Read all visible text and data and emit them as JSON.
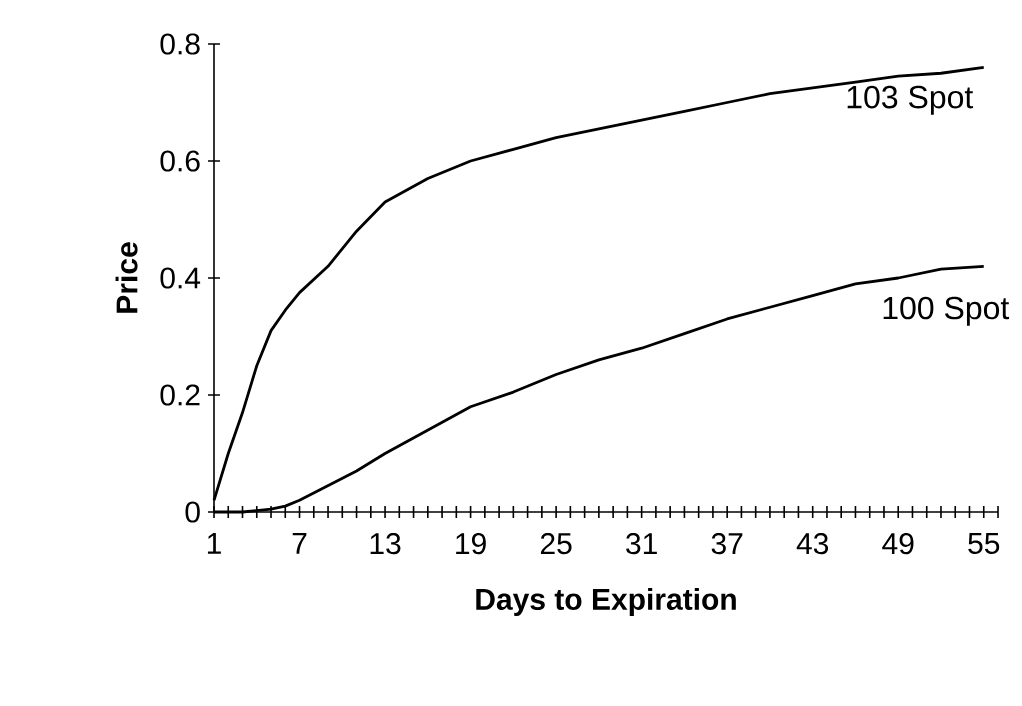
{
  "chart_data": {
    "type": "line",
    "xlabel": "Days to Expiration",
    "ylabel": "Price",
    "xlim": [
      1,
      56
    ],
    "ylim": [
      0,
      0.8
    ],
    "xticks": [
      1,
      {
        "value": 2,
        "label": null
      },
      {
        "value": 3,
        "label": null
      },
      {
        "value": 4,
        "label": null
      },
      {
        "value": 5,
        "label": null
      },
      {
        "value": 6,
        "label": null
      },
      7,
      {
        "value": 8,
        "label": null
      },
      {
        "value": 9,
        "label": null
      },
      {
        "value": 10,
        "label": null
      },
      {
        "value": 11,
        "label": null
      },
      {
        "value": 12,
        "label": null
      },
      13,
      {
        "value": 14,
        "label": null
      },
      {
        "value": 15,
        "label": null
      },
      {
        "value": 16,
        "label": null
      },
      {
        "value": 17,
        "label": null
      },
      {
        "value": 18,
        "label": null
      },
      19,
      {
        "value": 20,
        "label": null
      },
      {
        "value": 21,
        "label": null
      },
      {
        "value": 22,
        "label": null
      },
      {
        "value": 23,
        "label": null
      },
      {
        "value": 24,
        "label": null
      },
      25,
      {
        "value": 26,
        "label": null
      },
      {
        "value": 27,
        "label": null
      },
      {
        "value": 28,
        "label": null
      },
      {
        "value": 29,
        "label": null
      },
      {
        "value": 30,
        "label": null
      },
      31,
      {
        "value": 32,
        "label": null
      },
      {
        "value": 33,
        "label": null
      },
      {
        "value": 34,
        "label": null
      },
      {
        "value": 35,
        "label": null
      },
      {
        "value": 36,
        "label": null
      },
      37,
      {
        "value": 38,
        "label": null
      },
      {
        "value": 39,
        "label": null
      },
      {
        "value": 40,
        "label": null
      },
      {
        "value": 41,
        "label": null
      },
      {
        "value": 42,
        "label": null
      },
      43,
      {
        "value": 44,
        "label": null
      },
      {
        "value": 45,
        "label": null
      },
      {
        "value": 46,
        "label": null
      },
      {
        "value": 47,
        "label": null
      },
      {
        "value": 48,
        "label": null
      },
      49,
      {
        "value": 50,
        "label": null
      },
      {
        "value": 51,
        "label": null
      },
      {
        "value": 52,
        "label": null
      },
      {
        "value": 53,
        "label": null
      },
      {
        "value": 54,
        "label": null
      },
      55,
      {
        "value": 56,
        "label": null
      }
    ],
    "yticks": [
      0,
      0.2,
      0.4,
      0.6,
      0.8
    ],
    "grid": false,
    "legend": false,
    "marker": "none",
    "line_style": "solid",
    "series": [
      {
        "name": "103 Spot",
        "color": "#000000",
        "x": [
          1,
          2,
          3,
          4,
          5,
          6,
          7,
          9,
          11,
          13,
          16,
          19,
          22,
          25,
          28,
          31,
          34,
          37,
          40,
          43,
          46,
          49,
          52,
          55
        ],
        "values": [
          0.02,
          0.1,
          0.17,
          0.25,
          0.31,
          0.345,
          0.375,
          0.42,
          0.48,
          0.53,
          0.57,
          0.6,
          0.62,
          0.64,
          0.655,
          0.67,
          0.685,
          0.7,
          0.715,
          0.725,
          0.735,
          0.745,
          0.75,
          0.76
        ]
      },
      {
        "name": "100 Spot",
        "color": "#000000",
        "x": [
          1,
          3,
          5,
          6,
          7,
          9,
          11,
          13,
          16,
          19,
          22,
          25,
          28,
          31,
          34,
          37,
          40,
          43,
          46,
          49,
          52,
          55
        ],
        "values": [
          0,
          0,
          0.005,
          0.01,
          0.02,
          0.045,
          0.07,
          0.1,
          0.14,
          0.18,
          0.205,
          0.235,
          0.26,
          0.28,
          0.305,
          0.33,
          0.35,
          0.37,
          0.39,
          0.4,
          0.415,
          0.42
        ]
      }
    ]
  }
}
